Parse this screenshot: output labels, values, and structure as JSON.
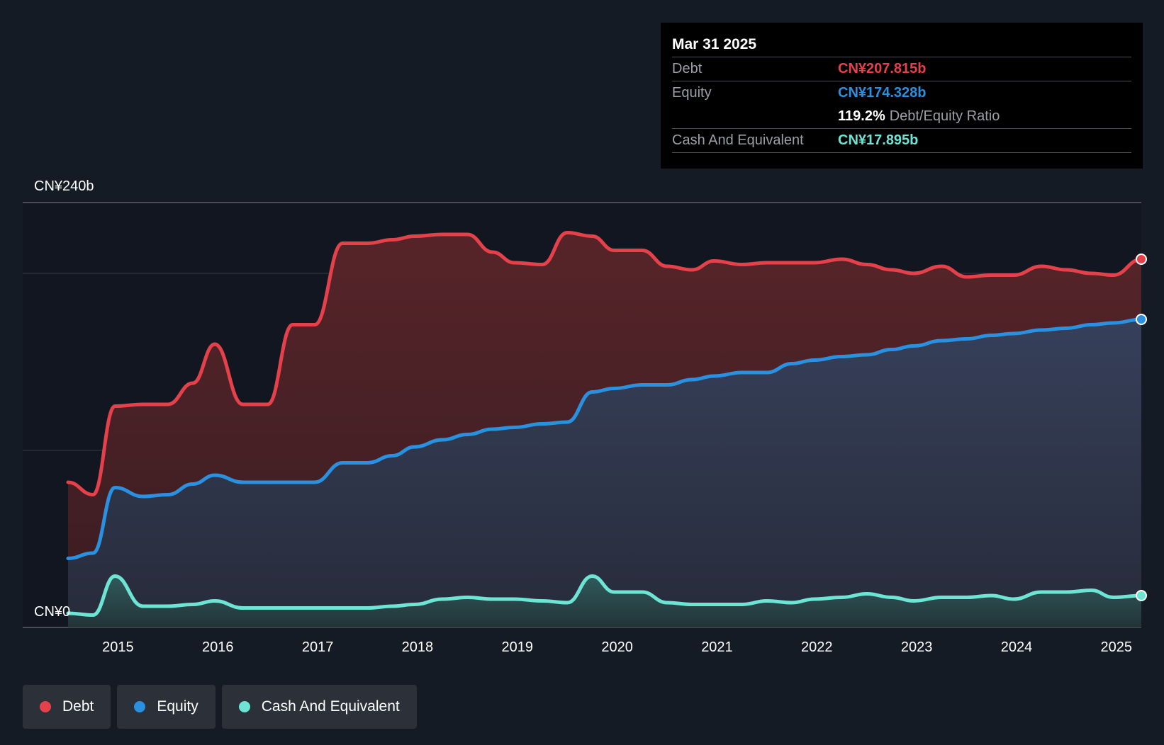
{
  "tooltip": {
    "date": "Mar 31 2025",
    "debt_label": "Debt",
    "debt_value": "CN¥207.815b",
    "equity_label": "Equity",
    "equity_value": "CN¥174.328b",
    "ratio_value": "119.2%",
    "ratio_label": "Debt/Equity Ratio",
    "cash_label": "Cash And Equivalent",
    "cash_value": "CN¥17.895b"
  },
  "legend": {
    "debt": "Debt",
    "equity": "Equity",
    "cash": "Cash And Equivalent"
  },
  "colors": {
    "debt": "#e5414b",
    "equity": "#2a90e0",
    "cash": "#6ee4d4",
    "background": "#151b24"
  },
  "chart_data": {
    "type": "area",
    "title": "",
    "xlabel": "",
    "ylabel": "",
    "y_top_label": "CN¥240b",
    "y_bottom_label": "CN¥0",
    "ylim": [
      0,
      240
    ],
    "xlim": [
      2014.5,
      2025.25
    ],
    "x_ticks": [
      "2015",
      "2016",
      "2017",
      "2018",
      "2019",
      "2020",
      "2021",
      "2022",
      "2023",
      "2024",
      "2025"
    ],
    "x_tick_values": [
      2015,
      2016,
      2017,
      2018,
      2019,
      2020,
      2021,
      2022,
      2023,
      2024,
      2025
    ],
    "grid_values": [
      100,
      200
    ],
    "series": [
      {
        "name": "Debt",
        "points": [
          [
            2014.5,
            82
          ],
          [
            2014.75,
            75
          ],
          [
            2014.97,
            125
          ],
          [
            2015.25,
            126
          ],
          [
            2015.5,
            126
          ],
          [
            2015.75,
            138
          ],
          [
            2015.97,
            160
          ],
          [
            2016.25,
            126
          ],
          [
            2016.5,
            126
          ],
          [
            2016.75,
            171
          ],
          [
            2016.97,
            171
          ],
          [
            2017.25,
            217
          ],
          [
            2017.5,
            217
          ],
          [
            2017.75,
            219
          ],
          [
            2017.97,
            221
          ],
          [
            2018.25,
            222
          ],
          [
            2018.5,
            222
          ],
          [
            2018.75,
            212
          ],
          [
            2018.97,
            206
          ],
          [
            2019.25,
            205
          ],
          [
            2019.5,
            223
          ],
          [
            2019.75,
            221
          ],
          [
            2019.97,
            213
          ],
          [
            2020.25,
            213
          ],
          [
            2020.5,
            204
          ],
          [
            2020.75,
            202
          ],
          [
            2020.97,
            207
          ],
          [
            2021.25,
            205
          ],
          [
            2021.5,
            206
          ],
          [
            2021.75,
            206
          ],
          [
            2021.97,
            206
          ],
          [
            2022.25,
            208
          ],
          [
            2022.5,
            205
          ],
          [
            2022.75,
            202
          ],
          [
            2022.97,
            200
          ],
          [
            2023.25,
            204
          ],
          [
            2023.5,
            198
          ],
          [
            2023.75,
            199
          ],
          [
            2023.97,
            199
          ],
          [
            2024.25,
            204
          ],
          [
            2024.5,
            202
          ],
          [
            2024.75,
            200
          ],
          [
            2024.97,
            199
          ],
          [
            2025.25,
            208
          ]
        ]
      },
      {
        "name": "Equity",
        "points": [
          [
            2014.5,
            39
          ],
          [
            2014.75,
            42
          ],
          [
            2014.97,
            79
          ],
          [
            2015.25,
            74
          ],
          [
            2015.5,
            75
          ],
          [
            2015.75,
            81
          ],
          [
            2015.97,
            86
          ],
          [
            2016.25,
            82
          ],
          [
            2016.5,
            82
          ],
          [
            2016.75,
            82
          ],
          [
            2016.97,
            82
          ],
          [
            2017.25,
            93
          ],
          [
            2017.5,
            93
          ],
          [
            2017.75,
            97
          ],
          [
            2017.97,
            102
          ],
          [
            2018.25,
            106
          ],
          [
            2018.5,
            109
          ],
          [
            2018.75,
            112
          ],
          [
            2018.97,
            113
          ],
          [
            2019.25,
            115
          ],
          [
            2019.5,
            116
          ],
          [
            2019.75,
            133
          ],
          [
            2019.97,
            135
          ],
          [
            2020.25,
            137
          ],
          [
            2020.5,
            137
          ],
          [
            2020.75,
            140
          ],
          [
            2020.97,
            142
          ],
          [
            2021.25,
            144
          ],
          [
            2021.5,
            144
          ],
          [
            2021.75,
            149
          ],
          [
            2021.97,
            151
          ],
          [
            2022.25,
            153
          ],
          [
            2022.5,
            154
          ],
          [
            2022.75,
            157
          ],
          [
            2022.97,
            159
          ],
          [
            2023.25,
            162
          ],
          [
            2023.5,
            163
          ],
          [
            2023.75,
            165
          ],
          [
            2023.97,
            166
          ],
          [
            2024.25,
            168
          ],
          [
            2024.5,
            169
          ],
          [
            2024.75,
            171
          ],
          [
            2024.97,
            172
          ],
          [
            2025.25,
            174
          ]
        ]
      },
      {
        "name": "Cash And Equivalent",
        "points": [
          [
            2014.5,
            8
          ],
          [
            2014.75,
            7
          ],
          [
            2014.97,
            29
          ],
          [
            2015.25,
            12
          ],
          [
            2015.5,
            12
          ],
          [
            2015.75,
            13
          ],
          [
            2015.97,
            15
          ],
          [
            2016.25,
            11
          ],
          [
            2016.5,
            11
          ],
          [
            2016.75,
            11
          ],
          [
            2016.97,
            11
          ],
          [
            2017.25,
            11
          ],
          [
            2017.5,
            11
          ],
          [
            2017.75,
            12
          ],
          [
            2017.97,
            13
          ],
          [
            2018.25,
            16
          ],
          [
            2018.5,
            17
          ],
          [
            2018.75,
            16
          ],
          [
            2018.97,
            16
          ],
          [
            2019.25,
            15
          ],
          [
            2019.5,
            14
          ],
          [
            2019.75,
            29
          ],
          [
            2019.97,
            20
          ],
          [
            2020.25,
            20
          ],
          [
            2020.5,
            14
          ],
          [
            2020.75,
            13
          ],
          [
            2020.97,
            13
          ],
          [
            2021.25,
            13
          ],
          [
            2021.5,
            15
          ],
          [
            2021.75,
            14
          ],
          [
            2021.97,
            16
          ],
          [
            2022.25,
            17
          ],
          [
            2022.5,
            19
          ],
          [
            2022.75,
            17
          ],
          [
            2022.97,
            15
          ],
          [
            2023.25,
            17
          ],
          [
            2023.5,
            17
          ],
          [
            2023.75,
            18
          ],
          [
            2023.97,
            16
          ],
          [
            2024.25,
            20
          ],
          [
            2024.5,
            20
          ],
          [
            2024.75,
            21
          ],
          [
            2024.97,
            17
          ],
          [
            2025.25,
            18
          ]
        ]
      }
    ],
    "legend_position": "bottom-left"
  }
}
